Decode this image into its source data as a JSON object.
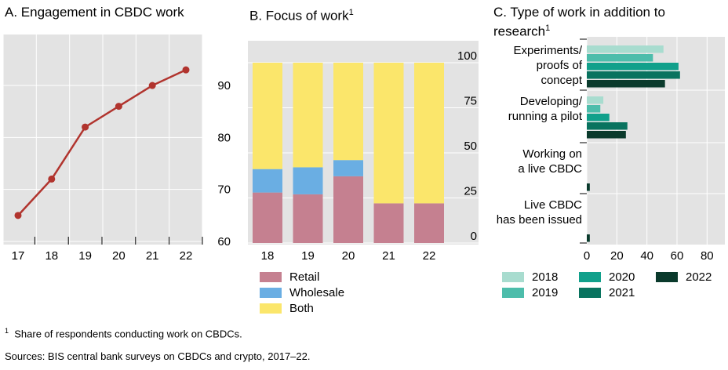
{
  "titles": {
    "a": "A. Engagement in CBDC work",
    "b": "B. Focus of work",
    "b_sup": "1",
    "c_line1": "C. Type of work in addition to",
    "c_line2": "research",
    "c_sup": "1"
  },
  "footnotes": {
    "note_marker": "1",
    "note": "Share of respondents conducting work on CBDCs.",
    "sources": "Sources: BIS central bank surveys on CBDCs and crypto, 2017–22."
  },
  "colors": {
    "panel_bg": "#e3e3e3",
    "line": "#b1342e",
    "retail": "#c58090",
    "wholesale": "#6aaee3",
    "both": "#fbe66b",
    "y2018": "#a8dccf",
    "y2019": "#4dbdab",
    "y2020": "#11a08b",
    "y2021": "#09735f",
    "y2022": "#0a3a2c"
  },
  "chart_data": [
    {
      "type": "line",
      "title": "A. Engagement in CBDC work",
      "x": [
        "17",
        "18",
        "19",
        "20",
        "21",
        "22"
      ],
      "series": [
        {
          "values": [
            65,
            72,
            82,
            86,
            90,
            93
          ]
        }
      ],
      "ylim": [
        60,
        98
      ],
      "yticks": [
        60,
        70,
        80,
        90
      ],
      "grid": true
    },
    {
      "type": "bar",
      "stacked": true,
      "title": "B. Focus of work",
      "categories": [
        "18",
        "19",
        "20",
        "21",
        "22"
      ],
      "series": [
        {
          "name": "Retail",
          "values": [
            28,
            27,
            37,
            22,
            22
          ]
        },
        {
          "name": "Wholesale",
          "values": [
            13,
            15,
            9,
            0,
            0
          ]
        },
        {
          "name": "Both",
          "values": [
            59,
            58,
            54,
            78,
            78
          ]
        }
      ],
      "ylim": [
        0,
        100
      ],
      "yticks": [
        0,
        25,
        50,
        75,
        100
      ],
      "grid": true
    },
    {
      "type": "bar",
      "orientation": "horizontal",
      "title": "C. Type of work in addition to research",
      "categories": [
        [
          "Experiments/",
          "proofs of",
          "concept"
        ],
        [
          "Developing/",
          "running a pilot"
        ],
        [
          "Working on",
          "a live CBDC"
        ],
        [
          "Live CBDC",
          "has been issued"
        ]
      ],
      "series": [
        {
          "name": "2018",
          "values": [
            51,
            11,
            0,
            0
          ]
        },
        {
          "name": "2019",
          "values": [
            44,
            9,
            0,
            0
          ]
        },
        {
          "name": "2020",
          "values": [
            61,
            15,
            0,
            0
          ]
        },
        {
          "name": "2021",
          "values": [
            62,
            27,
            0,
            0
          ]
        },
        {
          "name": "2022",
          "values": [
            52,
            26,
            2,
            2
          ]
        }
      ],
      "xlim": [
        0,
        90
      ],
      "xticks": [
        0,
        20,
        40,
        60,
        80
      ],
      "grid": true
    }
  ]
}
